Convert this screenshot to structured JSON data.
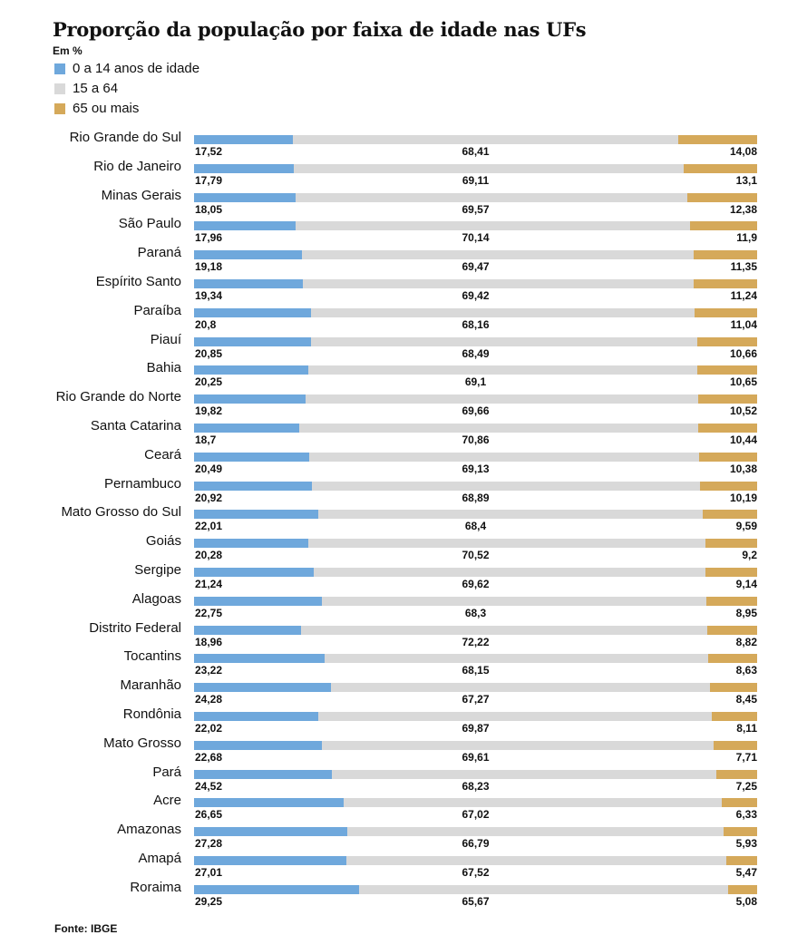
{
  "chart_data": {
    "type": "bar",
    "stacked": true,
    "orientation": "horizontal",
    "title": "Proporção da população por faixa de idade nas UFs",
    "subtitle": "Em %",
    "legend_position": "top-left",
    "xlim": [
      0,
      100
    ],
    "colors": {
      "0 a 14 anos de idade": "#6fa8dc",
      "15 a 64": "#d9d9d9",
      "65 ou mais": "#d5a95a"
    },
    "legend": [
      "0 a 14 anos de idade",
      "15 a 64",
      "65 ou mais"
    ],
    "categories": [
      "Rio Grande do Sul",
      "Rio de Janeiro",
      "Minas Gerais",
      "São Paulo",
      "Paraná",
      "Espírito Santo",
      "Paraíba",
      "Piauí",
      "Bahia",
      "Rio Grande do Norte",
      "Santa Catarina",
      "Ceará",
      "Pernambuco",
      "Mato Grosso do Sul",
      "Goiás",
      "Sergipe",
      "Alagoas",
      "Distrito Federal",
      "Tocantins",
      "Maranhão",
      "Rondônia",
      "Mato Grosso",
      "Pará",
      "Acre",
      "Amazonas",
      "Amapá",
      "Roraima"
    ],
    "series": [
      {
        "name": "0 a 14 anos de idade",
        "values": [
          17.52,
          17.79,
          18.05,
          17.96,
          19.18,
          19.34,
          20.8,
          20.85,
          20.25,
          19.82,
          18.7,
          20.49,
          20.92,
          22.01,
          20.28,
          21.24,
          22.75,
          18.96,
          23.22,
          24.28,
          22.02,
          22.68,
          24.52,
          26.65,
          27.28,
          27.01,
          29.25
        ],
        "labels": [
          "17,52",
          "17,79",
          "18,05",
          "17,96",
          "19,18",
          "19,34",
          "20,8",
          "20,85",
          "20,25",
          "19,82",
          "18,7",
          "20,49",
          "20,92",
          "22,01",
          "20,28",
          "21,24",
          "22,75",
          "18,96",
          "23,22",
          "24,28",
          "22,02",
          "22,68",
          "24,52",
          "26,65",
          "27,28",
          "27,01",
          "29,25"
        ]
      },
      {
        "name": "15 a 64",
        "values": [
          68.41,
          69.11,
          69.57,
          70.14,
          69.47,
          69.42,
          68.16,
          68.49,
          69.1,
          69.66,
          70.86,
          69.13,
          68.89,
          68.4,
          70.52,
          69.62,
          68.3,
          72.22,
          68.15,
          67.27,
          69.87,
          69.61,
          68.23,
          67.02,
          66.79,
          67.52,
          65.67
        ],
        "labels": [
          "68,41",
          "69,11",
          "69,57",
          "70,14",
          "69,47",
          "69,42",
          "68,16",
          "68,49",
          "69,1",
          "69,66",
          "70,86",
          "69,13",
          "68,89",
          "68,4",
          "70,52",
          "69,62",
          "68,3",
          "72,22",
          "68,15",
          "67,27",
          "69,87",
          "69,61",
          "68,23",
          "67,02",
          "66,79",
          "67,52",
          "65,67"
        ]
      },
      {
        "name": "65 ou mais",
        "values": [
          14.08,
          13.1,
          12.38,
          11.9,
          11.35,
          11.24,
          11.04,
          10.66,
          10.65,
          10.52,
          10.44,
          10.38,
          10.19,
          9.59,
          9.2,
          9.14,
          8.95,
          8.82,
          8.63,
          8.45,
          8.11,
          7.71,
          7.25,
          6.33,
          5.93,
          5.47,
          5.08
        ],
        "labels": [
          "14,08",
          "13,1",
          "12,38",
          "11,9",
          "11,35",
          "11,24",
          "11,04",
          "10,66",
          "10,65",
          "10,52",
          "10,44",
          "10,38",
          "10,19",
          "9,59",
          "9,2",
          "9,14",
          "8,95",
          "8,82",
          "8,63",
          "8,45",
          "8,11",
          "7,71",
          "7,25",
          "6,33",
          "5,93",
          "5,47",
          "5,08"
        ]
      }
    ],
    "source": "Fonte: IBGE"
  }
}
